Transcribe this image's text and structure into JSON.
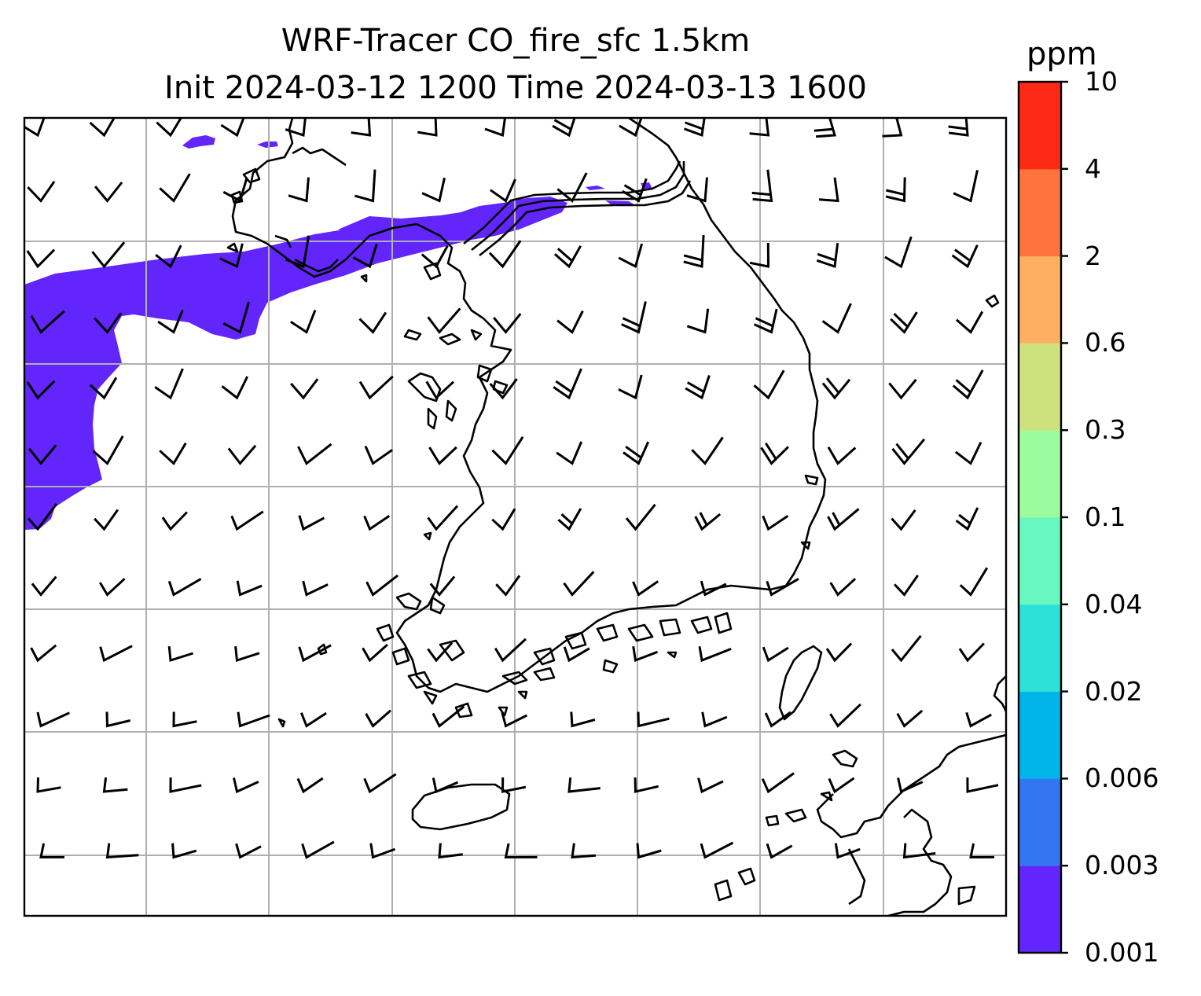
{
  "title_line1": "WRF-Tracer CO_fire_sfc 1.5km",
  "title_line2": "Init 2024-03-12 1200 Time 2024-03-13 1600",
  "colorbar": {
    "unit": "ppm",
    "ticks": [
      "0.001",
      "0.003",
      "0.006",
      "0.02",
      "0.04",
      "0.1",
      "0.3",
      "0.6",
      "2",
      "4",
      "10"
    ],
    "colors": [
      "#6226fc",
      "#3476f2",
      "#00b4ea",
      "#2de0d8",
      "#66f8c0",
      "#9bfb9e",
      "#cee17d",
      "#feb062",
      "#ff733d",
      "#ff2a15"
    ]
  },
  "plume_color": "#6226fc",
  "gridline_color": "#b0b0b0",
  "wind_barb_color": "#000000"
}
